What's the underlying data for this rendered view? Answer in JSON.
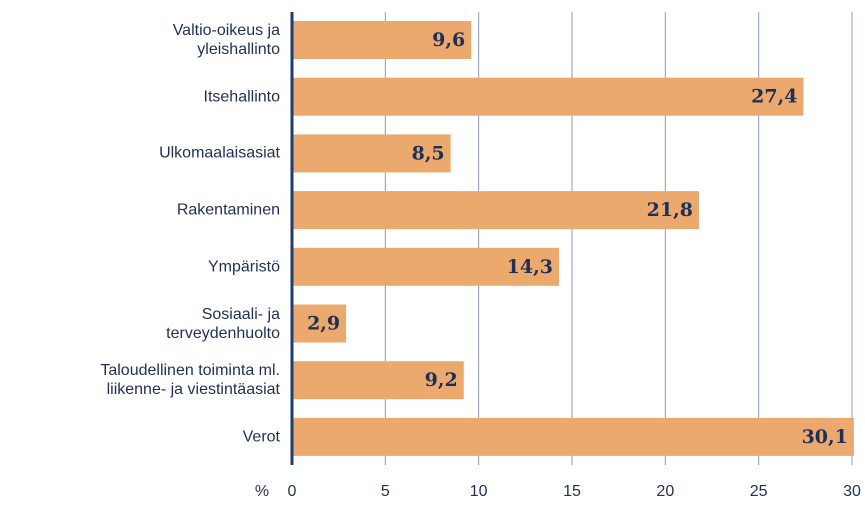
{
  "chart_data": {
    "type": "bar",
    "orientation": "horizontal",
    "categories": [
      "Valtio-oikeus ja\nyleishallinto",
      "Itsehallinto",
      "Ulkomaalaisasiat",
      "Rakentaminen",
      "Ympäristö",
      "Sosiaali- ja\nterveydenhuolto",
      "Taloudellinen toiminta ml.\nliikenne- ja viestintäasiat",
      "Verot"
    ],
    "values": [
      9.6,
      27.4,
      8.5,
      21.8,
      14.3,
      2.9,
      9.2,
      30.1
    ],
    "value_labels": [
      "9,6",
      "27,4",
      "8,5",
      "21,8",
      "14,3",
      "2,9",
      "9,2",
      "30,1"
    ],
    "color": "#eca96e",
    "xlabel": "%",
    "xlim": [
      0,
      30
    ],
    "xticks": [
      0,
      5,
      10,
      15,
      20,
      25,
      30
    ],
    "grid": true
  }
}
